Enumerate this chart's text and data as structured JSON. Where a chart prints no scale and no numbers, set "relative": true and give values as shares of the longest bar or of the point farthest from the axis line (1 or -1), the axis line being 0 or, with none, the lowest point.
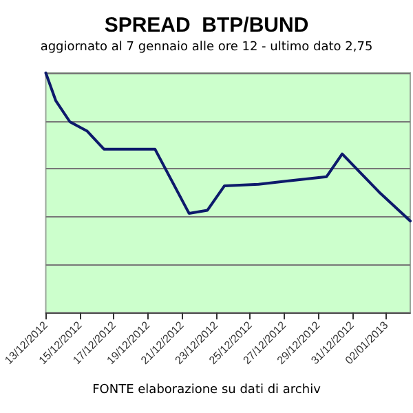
{
  "chart_data": {
    "type": "line",
    "title": "SPREAD  BTP/BUND",
    "subtitle": "aggiornato al 7 gennaio alle ore 12 - ultimo dato 2,75",
    "annotations": [
      "FONTE elaborazione su dati di archiv"
    ],
    "relative": true,
    "grid": "y",
    "marker": "none",
    "line_style": "solid",
    "x": [
      "2012-12-13T00:00",
      "2012-12-13T14:00",
      "2012-12-14T10:00",
      "2012-12-15T10:00",
      "2012-12-16T10:00",
      "2012-12-19T10:00",
      "2012-12-21T10:00",
      "2012-12-22T12:00",
      "2012-12-23T12:00",
      "2012-12-25T12:00",
      "2012-12-27T02:00",
      "2012-12-29T12:00",
      "2012-12-30T10:00",
      "2013-01-01T14:00",
      "2013-01-03T10:00"
    ],
    "xlim": [
      "2012-12-13T00:00",
      "2013-01-03T10:00"
    ],
    "xticks": [
      {
        "value": "2012-12-13",
        "label": "13/12/2012"
      },
      {
        "value": "2012-12-15",
        "label": "15/12/2012"
      },
      {
        "value": "2012-12-17",
        "label": "17/12/2012"
      },
      {
        "value": "2012-12-19",
        "label": "19/12/2012"
      },
      {
        "value": "2012-12-21",
        "label": "21/12/2012"
      },
      {
        "value": "2012-12-23",
        "label": "23/12/2012"
      },
      {
        "value": "2012-12-25",
        "label": "25/12/2012"
      },
      {
        "value": "2012-12-27",
        "label": "27/12/2012"
      },
      {
        "value": "2012-12-29",
        "label": "29/12/2012"
      },
      {
        "value": "2012-12-31",
        "label": "31/12/2012"
      },
      {
        "value": "2013-01-02",
        "label": "02/01/2013"
      }
    ],
    "series": [
      {
        "color": "#0d1a6b",
        "values": [
          1.0,
          0.885,
          0.796,
          0.758,
          0.682,
          0.682,
          0.414,
          0.427,
          0.529,
          0.535,
          0.548,
          0.567,
          0.662,
          0.503,
          0.382
        ]
      }
    ]
  }
}
